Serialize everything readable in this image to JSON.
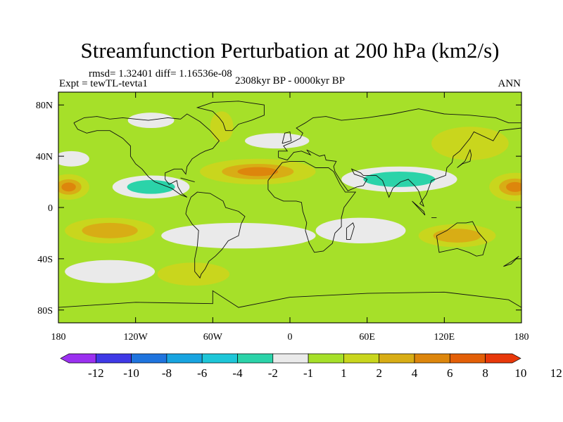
{
  "chart_data": {
    "type": "contour_map",
    "title": "Streamfunction Perturbation at 200 hPa (km2/s)",
    "stats_text": "rmsd= 1.32401 diff= 1.16536e-08",
    "experiment_text": "Expt = tewTL-tevta1",
    "period_text": "2308kyr BP - 0000kyr BP",
    "season_text": "ANN",
    "x_range": [
      -180,
      180
    ],
    "y_range": [
      -90,
      90
    ],
    "x_ticks": [
      {
        "value": -180,
        "label": "180"
      },
      {
        "value": -120,
        "label": "120W"
      },
      {
        "value": -60,
        "label": "60W"
      },
      {
        "value": 0,
        "label": "0"
      },
      {
        "value": 60,
        "label": "60E"
      },
      {
        "value": 120,
        "label": "120E"
      },
      {
        "value": 180,
        "label": "180"
      }
    ],
    "y_ticks": [
      {
        "value": 80,
        "label": "80N"
      },
      {
        "value": 40,
        "label": "40N"
      },
      {
        "value": 0,
        "label": "0"
      },
      {
        "value": -40,
        "label": "40S"
      },
      {
        "value": -80,
        "label": "80S"
      }
    ],
    "colorbar": {
      "colors": [
        "#9b30f0",
        "#3f39e6",
        "#1f74de",
        "#18a4e0",
        "#1ec6d8",
        "#2bd3a9",
        "#eaeaea",
        "#a6e029",
        "#c9d61d",
        "#d8ad15",
        "#dd860c",
        "#e35f07",
        "#e8380a"
      ],
      "labels": [
        "-12",
        "-10",
        "-8",
        "-6",
        "-4",
        "-2",
        "-1",
        "1",
        "2",
        "4",
        "6",
        "8",
        "10",
        "12"
      ]
    },
    "features": [
      {
        "name": "n-pacific-cyclonic",
        "lon": -172,
        "lat": 16,
        "rlon": 16,
        "rlat": 10,
        "value": 5
      },
      {
        "name": "n-pacific-cyclonic-east",
        "lon": 175,
        "lat": 16,
        "rlon": 20,
        "rlat": 11,
        "value": 5
      },
      {
        "name": "mid-atlantic-anticyclonic",
        "lon": -25,
        "lat": 28,
        "rlon": 45,
        "rlat": 10,
        "value": 4
      },
      {
        "name": "central-america-low",
        "lon": -108,
        "lat": 16,
        "rlon": 30,
        "rlat": 9,
        "value": -3
      },
      {
        "name": "nw-pacific-low",
        "lon": -170,
        "lat": 38,
        "rlon": 14,
        "rlat": 6,
        "value": -1.5
      },
      {
        "name": "arctic-canada-low",
        "lon": -108,
        "lat": 68,
        "rlon": 18,
        "rlat": 6,
        "value": -1.5
      },
      {
        "name": "greenland-high",
        "lon": -53,
        "lat": 63,
        "rlon": 9,
        "rlat": 12,
        "value": 1.5
      },
      {
        "name": "north-atlantic-low",
        "lon": -10,
        "lat": 52,
        "rlon": 25,
        "rlat": 6,
        "value": -1.5
      },
      {
        "name": "siberia-high",
        "lon": 140,
        "lat": 50,
        "rlon": 30,
        "rlat": 13,
        "value": 1.5
      },
      {
        "name": "asia-low",
        "lon": 85,
        "lat": 22,
        "rlon": 45,
        "rlat": 10,
        "value": -2.5
      },
      {
        "name": "s-america-low",
        "lon": -40,
        "lat": -22,
        "rlon": 60,
        "rlat": 10,
        "value": -1.5
      },
      {
        "name": "indian-ocean-low",
        "lon": 55,
        "lat": -18,
        "rlon": 35,
        "rlat": 10,
        "value": -1.5
      },
      {
        "name": "s-pacific-high",
        "lon": -140,
        "lat": -18,
        "rlon": 35,
        "rlat": 10,
        "value": 2.5
      },
      {
        "name": "australia-high",
        "lon": 130,
        "lat": -22,
        "rlon": 30,
        "rlat": 9,
        "value": 2.5
      },
      {
        "name": "s-pacific-low-far",
        "lon": -140,
        "lat": -50,
        "rlon": 35,
        "rlat": 9,
        "value": -1.5
      },
      {
        "name": "south-american-high",
        "lon": -75,
        "lat": -52,
        "rlon": 28,
        "rlat": 9,
        "value": 1.5
      }
    ]
  }
}
